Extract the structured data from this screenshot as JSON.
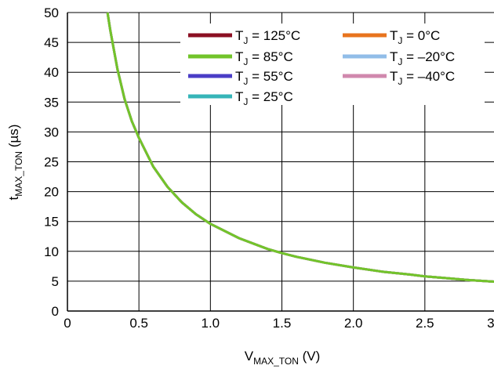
{
  "chart_data": {
    "type": "line",
    "xlabel_main": "V",
    "xlabel_sub": "MAX_TON",
    "xlabel_unit": " (V)",
    "ylabel_main": "t",
    "ylabel_sub": "MAX_TON",
    "ylabel_unit": " (µs)",
    "xlim": [
      0,
      3.0
    ],
    "ylim": [
      0,
      50
    ],
    "x_ticks": [
      "0",
      "0.5",
      "1.0",
      "1.5",
      "2.0",
      "2.5",
      "3.0"
    ],
    "y_ticks": [
      "0",
      "5",
      "10",
      "15",
      "20",
      "25",
      "30",
      "35",
      "40",
      "45",
      "50"
    ],
    "grid": true,
    "legend_placement": "top-right",
    "legend_sub": "J",
    "x": [
      0.28,
      0.3,
      0.35,
      0.4,
      0.45,
      0.5,
      0.6,
      0.7,
      0.8,
      0.9,
      1.0,
      1.2,
      1.4,
      1.5,
      1.6,
      1.8,
      2.0,
      2.2,
      2.4,
      2.5,
      2.6,
      2.8,
      3.0,
      3.1
    ],
    "series": [
      {
        "name": "= 125°C",
        "color": "#8b0f23",
        "values": [
          50.0,
          47.0,
          40.5,
          35.5,
          31.8,
          29.0,
          24.2,
          20.8,
          18.2,
          16.2,
          14.6,
          12.2,
          10.4,
          9.7,
          9.1,
          8.1,
          7.3,
          6.6,
          6.1,
          5.8,
          5.6,
          5.2,
          4.9,
          4.7
        ]
      },
      {
        "name": "= 85°C",
        "color": "#72c42a",
        "values": [
          50.0,
          47.0,
          40.5,
          35.5,
          31.8,
          29.0,
          24.2,
          20.8,
          18.2,
          16.2,
          14.6,
          12.2,
          10.4,
          9.7,
          9.1,
          8.1,
          7.3,
          6.6,
          6.1,
          5.8,
          5.6,
          5.2,
          4.9,
          4.7
        ]
      },
      {
        "name": "= 55°C",
        "color": "#4a3dc6",
        "values": [
          50.0,
          47.0,
          40.5,
          35.5,
          31.8,
          29.0,
          24.2,
          20.8,
          18.2,
          16.2,
          14.6,
          12.2,
          10.4,
          9.7,
          9.1,
          8.1,
          7.3,
          6.6,
          6.1,
          5.8,
          5.6,
          5.2,
          4.9,
          4.7
        ]
      },
      {
        "name": "= 25°C",
        "color": "#36b5b8",
        "values": [
          50.0,
          47.0,
          40.5,
          35.5,
          31.8,
          29.0,
          24.2,
          20.8,
          18.2,
          16.2,
          14.6,
          12.2,
          10.4,
          9.7,
          9.1,
          8.1,
          7.3,
          6.6,
          6.1,
          5.8,
          5.6,
          5.2,
          4.9,
          4.7
        ]
      },
      {
        "name": "= 0°C",
        "color": "#e8741e",
        "values": [
          50.0,
          47.0,
          40.5,
          35.5,
          31.8,
          29.0,
          24.2,
          20.8,
          18.2,
          16.2,
          14.6,
          12.2,
          10.4,
          9.7,
          9.1,
          8.1,
          7.3,
          6.6,
          6.1,
          5.8,
          5.6,
          5.2,
          4.9,
          4.7
        ]
      },
      {
        "name": "= –20°C",
        "color": "#91bde8",
        "values": [
          50.0,
          47.0,
          40.5,
          35.5,
          31.8,
          29.0,
          24.2,
          20.8,
          18.2,
          16.2,
          14.6,
          12.2,
          10.4,
          9.7,
          9.1,
          8.1,
          7.3,
          6.6,
          6.1,
          5.8,
          5.6,
          5.2,
          4.9,
          4.7
        ]
      },
      {
        "name": "= –40°C",
        "color": "#d088ad",
        "values": [
          50.0,
          47.0,
          40.5,
          35.5,
          31.8,
          29.0,
          24.2,
          20.8,
          18.2,
          16.2,
          14.6,
          12.2,
          10.4,
          9.7,
          9.1,
          8.1,
          7.3,
          6.6,
          6.1,
          5.8,
          5.6,
          5.2,
          4.9,
          4.7
        ]
      }
    ]
  }
}
